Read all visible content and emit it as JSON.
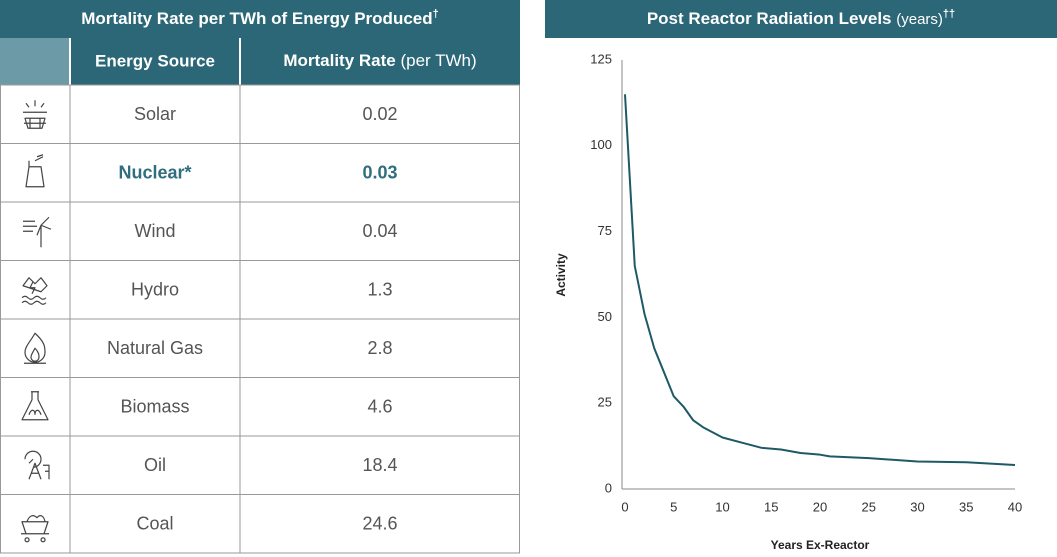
{
  "table": {
    "title": "Mortality Rate per TWh of Energy Produced",
    "title_mark": "†",
    "columns": [
      {
        "name": "Energy Source"
      },
      {
        "name": "Mortality Rate",
        "unit": "(per TWh)"
      }
    ],
    "rows": [
      [
        "Solar",
        "0.02"
      ],
      [
        "Nuclear*",
        "0.03"
      ],
      [
        "Wind",
        "0.04"
      ],
      [
        "Hydro",
        "1.3"
      ],
      [
        "Natural Gas",
        "2.8"
      ],
      [
        "Biomass",
        "4.6"
      ],
      [
        "Oil",
        "18.4"
      ],
      [
        "Coal",
        "24.6"
      ]
    ],
    "highlight_row": 1
  },
  "chart_data": {
    "type": "line",
    "title": "Post Reactor Radiation Levels",
    "title_unit": "(years)",
    "title_mark": "††",
    "x_label": "Years Ex-Reactor",
    "y_label": "Activity",
    "x": [
      0,
      1,
      2,
      3,
      4,
      5,
      6,
      7,
      8,
      10,
      12,
      14,
      16,
      18,
      20,
      21,
      25,
      30,
      35,
      40
    ],
    "series": [
      {
        "name": "Activity",
        "color": "#1d5a66",
        "values": [
          115,
          65,
          51,
          41,
          34,
          27,
          24,
          20,
          18,
          15,
          13.5,
          12,
          11.5,
          10.5,
          10,
          9.5,
          9,
          8,
          7.8,
          7
        ]
      }
    ],
    "xlim": [
      0,
      40
    ],
    "xticks": [
      0,
      5,
      10,
      15,
      20,
      25,
      30,
      35,
      40
    ],
    "ylim": [
      0,
      125
    ],
    "yticks": [
      0,
      25,
      50,
      75,
      100,
      125
    ]
  }
}
